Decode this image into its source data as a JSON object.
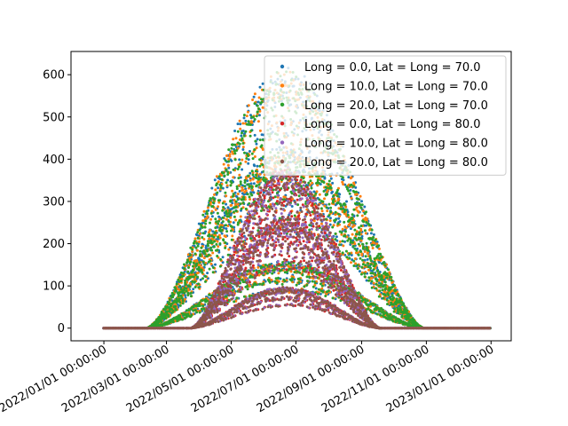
{
  "chart_data": {
    "type": "scatter",
    "title": "",
    "xlabel": "",
    "ylabel": "",
    "x_axis": {
      "kind": "date",
      "range": [
        "2021-12-01",
        "2023-01-20"
      ],
      "ticks": [
        "2022-01-01",
        "2022-03-01",
        "2022-05-01",
        "2022-07-01",
        "2022-09-01",
        "2022-11-01",
        "2023-01-01"
      ],
      "tick_labels": [
        "2022/01/01 00:00:00",
        "2022/03/01 00:00:00",
        "2022/05/01 00:00:00",
        "2022/07/01 00:00:00",
        "2022/09/01 00:00:00",
        "2022/11/01 00:00:00",
        "2023/01/01 00:00:00"
      ],
      "label_rotation": "30 degrees"
    },
    "y_axis": {
      "range": [
        -30,
        655
      ],
      "ticks": [
        0,
        100,
        200,
        300,
        400,
        500,
        600
      ],
      "tick_labels": [
        "0",
        "100",
        "200",
        "300",
        "400",
        "500",
        "600"
      ]
    },
    "grid": false,
    "legend": {
      "position": "top-right"
    },
    "series": [
      {
        "name": "Long = 0.0, Lat = Long = 70.0",
        "color": "#1f77b4",
        "peak_date": "2022-06-21",
        "peak": 620,
        "start": "2022-02-10",
        "end": "2022-10-30"
      },
      {
        "name": "Long = 10.0, Lat = Long = 70.0",
        "color": "#ff7f0e",
        "peak_date": "2022-06-21",
        "peak": 615,
        "start": "2022-02-10",
        "end": "2022-10-30"
      },
      {
        "name": "Long = 20.0, Lat = Long = 70.0",
        "color": "#2ca02c",
        "peak_date": "2022-06-21",
        "peak": 612,
        "start": "2022-02-10",
        "end": "2022-10-30"
      },
      {
        "name": "Long = 0.0, Lat = Long = 80.0",
        "color": "#d62728",
        "peak_date": "2022-06-21",
        "peak": 385,
        "start": "2022-03-25",
        "end": "2022-09-20"
      },
      {
        "name": "Long = 10.0, Lat = Long = 80.0",
        "color": "#9467bd",
        "peak_date": "2022-06-21",
        "peak": 383,
        "start": "2022-03-25",
        "end": "2022-09-20"
      },
      {
        "name": "Long = 20.0, Lat = Long = 80.0",
        "color": "#8c564b",
        "peak_date": "2022-06-21",
        "peak": 380,
        "start": "2022-03-25",
        "end": "2022-09-20"
      }
    ]
  }
}
